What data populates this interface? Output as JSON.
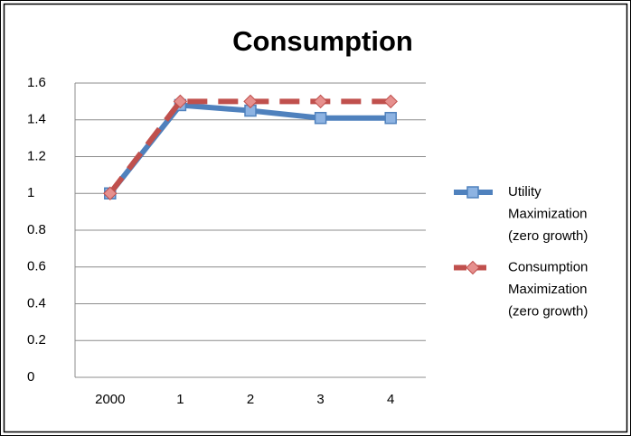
{
  "chart_data": {
    "type": "line",
    "title": "Consumption",
    "categories": [
      "2000",
      "1",
      "2",
      "3",
      "4"
    ],
    "series": [
      {
        "name": "Utility Maximization (zero growth)",
        "color": "#4f81bd",
        "marker": "square",
        "dash": false,
        "values": [
          1,
          1.48,
          1.45,
          1.41,
          1.41
        ]
      },
      {
        "name": "Consumption Maximization (zero growth)",
        "color": "#c0504d",
        "marker": "diamond",
        "dash": true,
        "values": [
          1,
          1.5,
          1.5,
          1.5,
          1.5
        ]
      }
    ],
    "ylim": [
      0,
      1.6
    ],
    "yticks": [
      0,
      0.2,
      0.4,
      0.6,
      0.8,
      1,
      1.2,
      1.4,
      1.6
    ],
    "grid": true,
    "legend": "right"
  }
}
